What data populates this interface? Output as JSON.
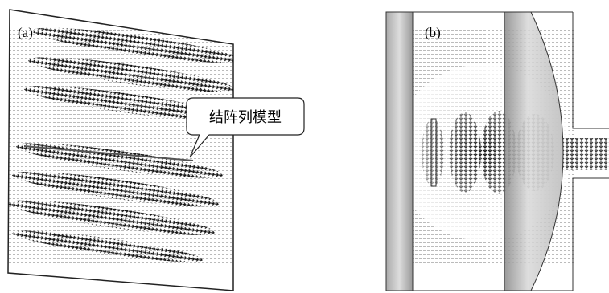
{
  "panels": [
    {
      "label": "(a)",
      "callout": "结阵列模型"
    },
    {
      "label": "(b)"
    }
  ]
}
